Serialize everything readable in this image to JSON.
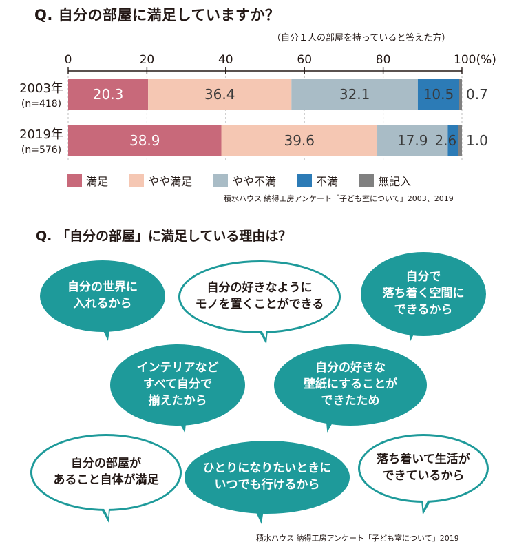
{
  "question1": {
    "title": "Q. 自分の部屋に満足していますか？",
    "subtitle": "（自分１人の部屋を持っていると答えた方）",
    "source": "積水ハウス 納得工房アンケート「子ども室について」2003、2019"
  },
  "chart_data": {
    "type": "bar",
    "orientation": "horizontal",
    "stacked": true,
    "x_ticks": [
      "0",
      "20",
      "40",
      "60",
      "80",
      "100(%)"
    ],
    "xlim": [
      0,
      100
    ],
    "categories": [
      {
        "year": "2003年",
        "n": "(n=418)"
      },
      {
        "year": "2019年",
        "n": "(n=576)"
      }
    ],
    "series": [
      {
        "name": "満足",
        "color": "#c8697a",
        "label_color": "#ffffff",
        "values": [
          20.3,
          38.9
        ],
        "labels": [
          "20.3",
          "38.9"
        ]
      },
      {
        "name": "やや満足",
        "color": "#f5c7b3",
        "label_color": "#3a3a3a",
        "values": [
          36.4,
          39.6
        ],
        "labels": [
          "36.4",
          "39.6"
        ]
      },
      {
        "name": "やや不満",
        "color": "#a9bcc6",
        "label_color": "#3a3a3a",
        "values": [
          32.1,
          17.9
        ],
        "labels": [
          "32.1",
          "17.9"
        ]
      },
      {
        "name": "不満",
        "color": "#2c7bb6",
        "label_color": "#3a3a3a",
        "values": [
          10.5,
          2.6
        ],
        "labels": [
          "10.5",
          "2.6"
        ]
      },
      {
        "name": "無記入",
        "color": "#808080",
        "label_color": "#3a3a3a",
        "values": [
          0.7,
          1.0
        ],
        "labels": [
          "0.7",
          "1.0"
        ]
      }
    ],
    "legend_position": "bottom",
    "grid": true
  },
  "question2": {
    "title": "Q. 「自分の部屋」に満足している理由は？",
    "reasons": [
      "自分の世界に\n入れるから",
      "自分の好きなように\nモノを置くことができる",
      "自分で\n落ち着く空間に\nできるから",
      "インテリアなど\nすべて自分で\n揃えたから",
      "自分の好きな\n壁紙にすることが\nできたため",
      "自分の部屋が\nあること自体が満足",
      "ひとりになりたいときに\nいつでも行けるから",
      "落ち着いて生活が\nできているから"
    ],
    "source": "積水ハウス 納得工房アンケート「子ども室について」2019"
  }
}
